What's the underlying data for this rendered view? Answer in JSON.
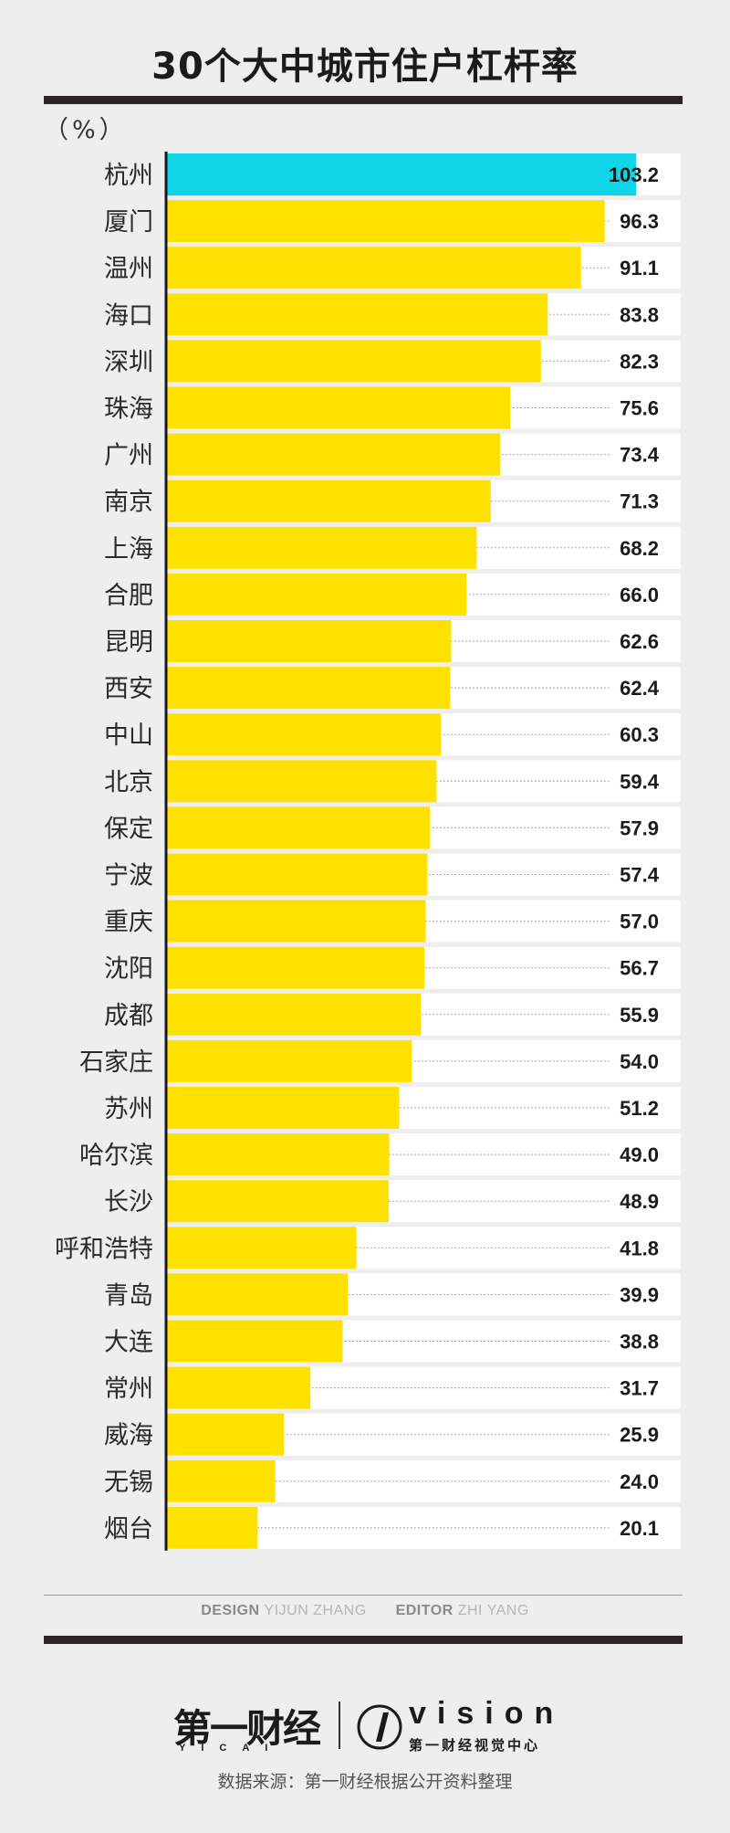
{
  "chart_data": {
    "type": "bar",
    "orientation": "horizontal",
    "title": "30个大中城市住户杠杆率",
    "unit": "（%）",
    "categories": [
      "杭州",
      "厦门",
      "温州",
      "海口",
      "深圳",
      "珠海",
      "广州",
      "南京",
      "上海",
      "合肥",
      "昆明",
      "西安",
      "中山",
      "北京",
      "保定",
      "宁波",
      "重庆",
      "沈阳",
      "成都",
      "石家庄",
      "苏州",
      "哈尔滨",
      "长沙",
      "呼和浩特",
      "青岛",
      "大连",
      "常州",
      "威海",
      "无锡",
      "烟台"
    ],
    "values": [
      103.2,
      96.3,
      91.1,
      83.8,
      82.3,
      75.6,
      73.4,
      71.3,
      68.2,
      66.0,
      62.6,
      62.4,
      60.3,
      59.4,
      57.9,
      57.4,
      57.0,
      56.7,
      55.9,
      54.0,
      51.2,
      49.0,
      48.9,
      41.8,
      39.9,
      38.8,
      31.7,
      25.9,
      24.0,
      20.1
    ],
    "value_labels": [
      "103.2",
      "96.3",
      "91.1",
      "83.8",
      "82.3",
      "75.6",
      "73.4",
      "71.3",
      "68.2",
      "66.0",
      "62.6",
      "62.4",
      "60.3",
      "59.4",
      "57.9",
      "57.4",
      "57.0",
      "56.7",
      "55.9",
      "54.0",
      "51.2",
      "49.0",
      "48.9",
      "41.8",
      "39.9",
      "38.8",
      "31.7",
      "25.9",
      "24.0",
      "20.1"
    ],
    "highlight_index": 0,
    "colors": {
      "highlight": "#0fd6e6",
      "bar": "#ffe100",
      "track": "#ffffff",
      "axis": "#1a1a1a"
    },
    "xlim": [
      0,
      113
    ],
    "grid": false,
    "legend": "none"
  },
  "credits": {
    "design_label": "DESIGN",
    "design_name": "YIJUN ZHANG",
    "editor_label": "EDITOR",
    "editor_name": "ZHI YANG"
  },
  "logos": {
    "brand_name": "第一财经",
    "brand_romanized": "YICAI",
    "vision_word": "vision",
    "vision_center": "第一财经视觉中心"
  },
  "source": "数据来源：第一财经根据公开资料整理"
}
